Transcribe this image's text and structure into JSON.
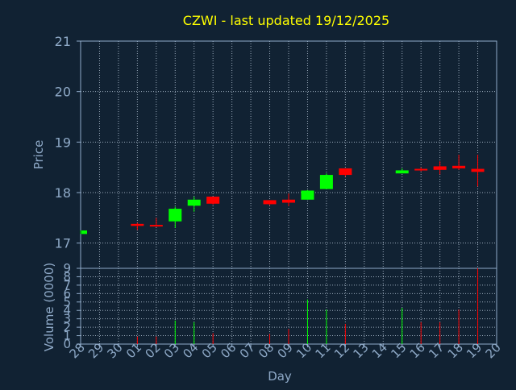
{
  "title": "CZWI - last updated 19/12/2025",
  "colors": {
    "background": "#112233",
    "title": "#ffff00",
    "axis_text": "#8faac8",
    "axis_line": "#8faac8",
    "grid": "#9aaabb",
    "up": "#00ff00",
    "down": "#ff0000"
  },
  "chart_data": [
    {
      "type": "candlestick",
      "ylabel": "Price",
      "ylim": [
        16.5,
        21
      ],
      "yticks": [
        "17",
        "18",
        "19",
        "20",
        "21"
      ],
      "grid": true,
      "x": [
        "28",
        "29",
        "30",
        "01",
        "02",
        "03",
        "04",
        "05",
        "06",
        "07",
        "08",
        "09",
        "10",
        "11",
        "12",
        "13",
        "14",
        "15",
        "16",
        "17",
        "18",
        "19",
        "20"
      ],
      "candles": [
        {
          "day": "28",
          "open": 17.18,
          "high": 17.25,
          "low": 17.18,
          "close": 17.25
        },
        {
          "day": "01",
          "open": 17.38,
          "high": 17.4,
          "low": 17.26,
          "close": 17.34
        },
        {
          "day": "02",
          "open": 17.36,
          "high": 17.5,
          "low": 17.32,
          "close": 17.33
        },
        {
          "day": "03",
          "open": 17.43,
          "high": 17.72,
          "low": 17.3,
          "close": 17.68
        },
        {
          "day": "04",
          "open": 17.74,
          "high": 17.92,
          "low": 17.62,
          "close": 17.86
        },
        {
          "day": "05",
          "open": 17.92,
          "high": 17.92,
          "low": 17.76,
          "close": 17.78
        },
        {
          "day": "08",
          "open": 17.85,
          "high": 17.85,
          "low": 17.75,
          "close": 17.77
        },
        {
          "day": "09",
          "open": 17.86,
          "high": 17.98,
          "low": 17.73,
          "close": 17.8
        },
        {
          "day": "10",
          "open": 17.86,
          "high": 18.05,
          "low": 17.86,
          "close": 18.04
        },
        {
          "day": "11",
          "open": 18.07,
          "high": 18.38,
          "low": 18.07,
          "close": 18.35
        },
        {
          "day": "12",
          "open": 18.48,
          "high": 18.48,
          "low": 18.32,
          "close": 18.35
        },
        {
          "day": "15",
          "open": 18.38,
          "high": 18.48,
          "low": 18.38,
          "close": 18.44
        },
        {
          "day": "16",
          "open": 18.47,
          "high": 18.5,
          "low": 18.42,
          "close": 18.45
        },
        {
          "day": "17",
          "open": 18.52,
          "high": 18.62,
          "low": 18.36,
          "close": 18.45
        },
        {
          "day": "18",
          "open": 18.53,
          "high": 18.75,
          "low": 18.45,
          "close": 18.48
        },
        {
          "day": "19",
          "open": 18.47,
          "high": 18.75,
          "low": 18.12,
          "close": 18.41
        }
      ]
    },
    {
      "type": "bar",
      "ylabel": "Volume (0000)",
      "xlabel": "Day",
      "ylim": [
        0,
        9
      ],
      "yticks": [
        "0",
        "1",
        "2",
        "3",
        "4",
        "5",
        "6",
        "7",
        "8",
        "9"
      ],
      "grid": true,
      "x": [
        "28",
        "29",
        "30",
        "01",
        "02",
        "03",
        "04",
        "05",
        "06",
        "07",
        "08",
        "09",
        "10",
        "11",
        "12",
        "13",
        "14",
        "15",
        "16",
        "17",
        "18",
        "19",
        "20"
      ],
      "bars": [
        {
          "day": "01",
          "value": 0.9,
          "direction": "down"
        },
        {
          "day": "02",
          "value": 0.9,
          "direction": "down"
        },
        {
          "day": "03",
          "value": 2.8,
          "direction": "up"
        },
        {
          "day": "04",
          "value": 2.6,
          "direction": "up"
        },
        {
          "day": "05",
          "value": 1.3,
          "direction": "down"
        },
        {
          "day": "08",
          "value": 1.2,
          "direction": "down"
        },
        {
          "day": "09",
          "value": 1.8,
          "direction": "down"
        },
        {
          "day": "10",
          "value": 5.3,
          "direction": "up"
        },
        {
          "day": "11",
          "value": 4.1,
          "direction": "up"
        },
        {
          "day": "12",
          "value": 2.4,
          "direction": "down"
        },
        {
          "day": "15",
          "value": 4.3,
          "direction": "up"
        },
        {
          "day": "16",
          "value": 2.6,
          "direction": "down"
        },
        {
          "day": "17",
          "value": 2.6,
          "direction": "down"
        },
        {
          "day": "18",
          "value": 4.1,
          "direction": "down"
        },
        {
          "day": "19",
          "value": 9.0,
          "direction": "down"
        }
      ]
    }
  ]
}
